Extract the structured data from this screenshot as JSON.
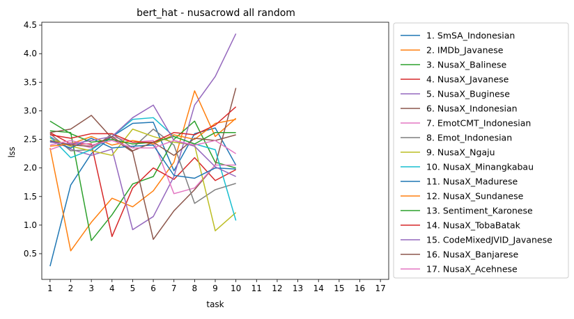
{
  "chart_data": {
    "type": "line",
    "title": "bert_hat - nusacrowd all random",
    "xlabel": "task",
    "ylabel": "lss",
    "xlim": [
      0.6,
      17.4
    ],
    "ylim": [
      0.05,
      4.55
    ],
    "x_ticks": [
      "1",
      "2",
      "3",
      "4",
      "5",
      "6",
      "7",
      "8",
      "9",
      "10",
      "11",
      "12",
      "13",
      "14",
      "15",
      "16",
      "17"
    ],
    "y_ticks": [
      "0.5",
      "1.0",
      "1.5",
      "2.0",
      "2.5",
      "3.0",
      "3.5",
      "4.0",
      "4.5"
    ],
    "grid": false,
    "legend_position": "outside-right",
    "series": [
      {
        "name": "1. SmSA_Indonesian",
        "color": "#1f77b4",
        "x": [
          1,
          2,
          3,
          4,
          5,
          6,
          7,
          8,
          9,
          10
        ],
        "values": [
          0.28,
          1.7,
          2.25,
          2.55,
          2.78,
          2.8,
          1.95,
          2.6,
          2.7,
          2.05
        ]
      },
      {
        "name": "2. IMDb_Javanese",
        "color": "#ff7f0e",
        "x": [
          1,
          2,
          3,
          4,
          5,
          6,
          7,
          8,
          9,
          10
        ],
        "values": [
          2.35,
          0.55,
          1.05,
          1.47,
          1.32,
          1.6,
          2.1,
          3.35,
          2.55,
          2.87
        ]
      },
      {
        "name": "3. NusaX_Balinese",
        "color": "#2ca02c",
        "x": [
          1,
          2,
          3,
          4,
          5,
          6,
          7,
          8,
          9,
          10
        ],
        "values": [
          2.65,
          2.62,
          0.73,
          1.18,
          1.72,
          1.85,
          2.5,
          2.82,
          2.1,
          2.0
        ]
      },
      {
        "name": "4. NusaX_Javanese",
        "color": "#d62728",
        "x": [
          1,
          2,
          3,
          4,
          5,
          6,
          7,
          8,
          9,
          10
        ],
        "values": [
          2.62,
          2.42,
          2.42,
          0.8,
          1.65,
          2.0,
          1.8,
          2.18,
          1.78,
          1.97
        ]
      },
      {
        "name": "5. NusaX_Buginese",
        "color": "#9467bd",
        "x": [
          1,
          2,
          3,
          4,
          5,
          6,
          7,
          8,
          9,
          10
        ],
        "values": [
          2.55,
          2.33,
          2.22,
          2.33,
          0.92,
          1.15,
          1.85,
          3.1,
          3.6,
          4.35
        ]
      },
      {
        "name": "6. NusaX_Indonesian",
        "color": "#8c564b",
        "x": [
          1,
          2,
          3,
          4,
          5,
          6,
          7,
          8,
          9,
          10
        ],
        "values": [
          2.62,
          2.68,
          2.92,
          2.52,
          2.28,
          0.75,
          1.25,
          1.62,
          2.05,
          3.4
        ]
      },
      {
        "name": "7. EmotCMT_Indonesian",
        "color": "#e377c2",
        "x": [
          1,
          2,
          3,
          4,
          5,
          6,
          7,
          8,
          9,
          10
        ],
        "values": [
          2.32,
          2.45,
          2.35,
          2.55,
          2.45,
          2.48,
          1.55,
          1.65,
          2.05,
          2.05
        ]
      },
      {
        "name": "8. Emot_Indonesian",
        "color": "#7f7f7f",
        "x": [
          1,
          2,
          3,
          4,
          5,
          6,
          7,
          8,
          9,
          10
        ],
        "values": [
          2.6,
          2.3,
          2.32,
          2.6,
          2.35,
          2.68,
          2.4,
          1.38,
          1.62,
          1.73
        ]
      },
      {
        "name": "9. NusaX_Ngaju",
        "color": "#bcbd22",
        "x": [
          1,
          2,
          3,
          4,
          5,
          6,
          7,
          8,
          9,
          10
        ],
        "values": [
          2.52,
          2.38,
          2.3,
          2.22,
          2.68,
          2.55,
          2.45,
          2.4,
          0.9,
          1.22
        ]
      },
      {
        "name": "10. NusaX_Minangkabau",
        "color": "#17becf",
        "x": [
          1,
          2,
          3,
          4,
          5,
          6,
          7,
          8,
          9,
          10
        ],
        "values": [
          2.55,
          2.18,
          2.32,
          2.55,
          2.85,
          2.88,
          2.55,
          2.42,
          2.32,
          1.08
        ]
      },
      {
        "name": "11. NusaX_Madurese",
        "color": "#1f77b4",
        "x": [
          1,
          2,
          3,
          4,
          5,
          6,
          7,
          8,
          9,
          10
        ],
        "values": [
          2.47,
          2.35,
          2.52,
          2.35,
          2.38,
          2.4,
          1.87,
          1.82,
          2.0,
          1.98
        ]
      },
      {
        "name": "12. NusaX_Sundanese",
        "color": "#ff7f0e",
        "x": [
          1,
          2,
          3,
          4,
          5,
          6,
          7,
          8,
          9,
          10
        ],
        "values": [
          2.38,
          2.42,
          2.55,
          2.4,
          2.48,
          2.42,
          2.58,
          2.5,
          2.78,
          2.85
        ]
      },
      {
        "name": "13. Sentiment_Karonese",
        "color": "#2ca02c",
        "x": [
          1,
          2,
          3,
          4,
          5,
          6,
          7,
          8,
          9,
          10
        ],
        "values": [
          2.82,
          2.6,
          2.45,
          2.5,
          2.42,
          2.45,
          2.55,
          2.42,
          2.62,
          2.62
        ]
      },
      {
        "name": "14. NusaX_TobaBatak",
        "color": "#d62728",
        "x": [
          1,
          2,
          3,
          4,
          5,
          6,
          7,
          8,
          9,
          10
        ],
        "values": [
          2.58,
          2.52,
          2.6,
          2.6,
          2.45,
          2.45,
          2.62,
          2.58,
          2.75,
          3.07
        ]
      },
      {
        "name": "15. CodeMixedJVID_Javanese",
        "color": "#9467bd",
        "x": [
          1,
          2,
          3,
          4,
          5,
          6,
          7,
          8,
          9,
          10
        ],
        "values": [
          2.45,
          2.42,
          2.48,
          2.55,
          2.88,
          3.1,
          2.48,
          2.38,
          2.02,
          1.85
        ]
      },
      {
        "name": "16. NusaX_Banjarese",
        "color": "#8c564b",
        "x": [
          1,
          2,
          3,
          4,
          5,
          6,
          7,
          8,
          9,
          10
        ],
        "values": [
          2.48,
          2.4,
          2.38,
          2.55,
          2.3,
          2.45,
          2.22,
          2.52,
          2.48,
          2.58
        ]
      },
      {
        "name": "17. NusaX_Acehnese",
        "color": "#e377c2",
        "x": [
          1,
          2,
          3,
          4,
          5,
          6,
          7,
          8,
          9,
          10
        ],
        "values": [
          2.4,
          2.48,
          2.4,
          2.48,
          2.35,
          2.35,
          2.48,
          2.4,
          2.48,
          2.25
        ]
      }
    ]
  }
}
